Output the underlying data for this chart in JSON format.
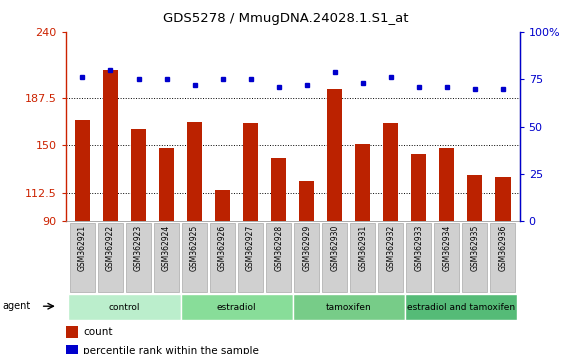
{
  "title": "GDS5278 / MmugDNA.24028.1.S1_at",
  "samples": [
    "GSM362921",
    "GSM362922",
    "GSM362923",
    "GSM362924",
    "GSM362925",
    "GSM362926",
    "GSM362927",
    "GSM362928",
    "GSM362929",
    "GSM362930",
    "GSM362931",
    "GSM362932",
    "GSM362933",
    "GSM362934",
    "GSM362935",
    "GSM362936"
  ],
  "counts": [
    170,
    210,
    163,
    148,
    169,
    115,
    168,
    140,
    122,
    195,
    151,
    168,
    143,
    148,
    127,
    125
  ],
  "percentiles": [
    76,
    80,
    75,
    75,
    72,
    75,
    75,
    71,
    72,
    79,
    73,
    76,
    71,
    71,
    70,
    70
  ],
  "groups": [
    {
      "label": "control",
      "start": 0,
      "end": 4,
      "color": "#aaeebb"
    },
    {
      "label": "estradiol",
      "start": 4,
      "end": 8,
      "color": "#88dd99"
    },
    {
      "label": "tamoxifen",
      "start": 8,
      "end": 12,
      "color": "#66cc88"
    },
    {
      "label": "estradiol and tamoxifen",
      "start": 12,
      "end": 16,
      "color": "#44bb77"
    }
  ],
  "ylim_left": [
    90,
    240
  ],
  "yticks_left": [
    90,
    112.5,
    150,
    187.5,
    240
  ],
  "ylim_right": [
    0,
    100
  ],
  "yticks_right": [
    0,
    25,
    50,
    75,
    100
  ],
  "bar_color": "#bb2200",
  "dot_color": "#0000cc",
  "dotted_line_y": [
    112.5,
    150,
    187.5
  ],
  "xlabel_color": "#cc2200",
  "right_axis_color": "#0000cc",
  "legend_count_color": "#bb2200",
  "legend_dot_color": "#0000cc"
}
